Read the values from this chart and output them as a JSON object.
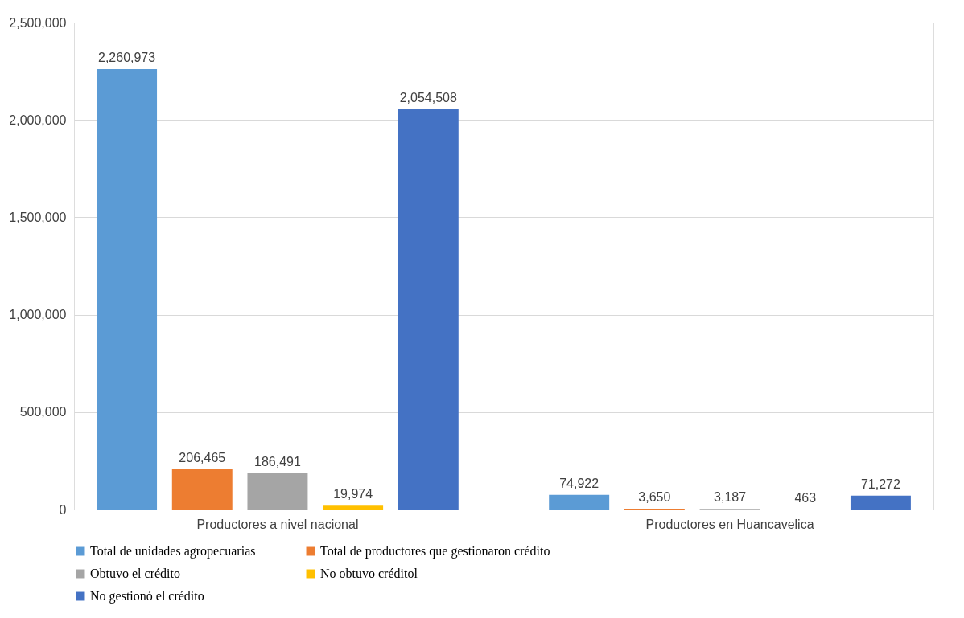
{
  "chart_data": {
    "type": "bar",
    "categories": [
      "Productores a nivel nacional",
      "Productores en Huancavelica"
    ],
    "series": [
      {
        "name": "Total de unidades agropecuarias",
        "color": "#5b9bd5",
        "values": [
          2260973,
          74922
        ],
        "value_labels": [
          "2,260,973",
          "74,922"
        ]
      },
      {
        "name": "Total de productores que gestionaron crédito",
        "color": "#ed7d31",
        "values": [
          206465,
          3650
        ],
        "value_labels": [
          "206,465",
          "3,650"
        ]
      },
      {
        "name": "Obtuvo el crédito",
        "color": "#a5a5a5",
        "values": [
          186491,
          3187
        ],
        "value_labels": [
          "186,491",
          "3,187"
        ]
      },
      {
        "name": "No obtuvo créditol",
        "color": "#ffc000",
        "values": [
          19974,
          463
        ],
        "value_labels": [
          "19,974",
          "463"
        ]
      },
      {
        "name": "No gestionó el crédito",
        "color": "#4472c4",
        "values": [
          2054508,
          71272
        ],
        "value_labels": [
          "2,054,508",
          "71,272"
        ]
      }
    ],
    "ylim": [
      0,
      2500000
    ],
    "yticks": [
      0,
      {
        "value": 500000,
        "label": "500,000"
      },
      {
        "value": 1000000,
        "label": "1,000,000"
      },
      {
        "value": 1500000,
        "label": "1,500,000"
      },
      {
        "value": 2000000,
        "label": "2,000,000"
      },
      {
        "value": 2500000,
        "label": "2,500,000"
      }
    ],
    "grid": "y",
    "legend": "bottom"
  }
}
